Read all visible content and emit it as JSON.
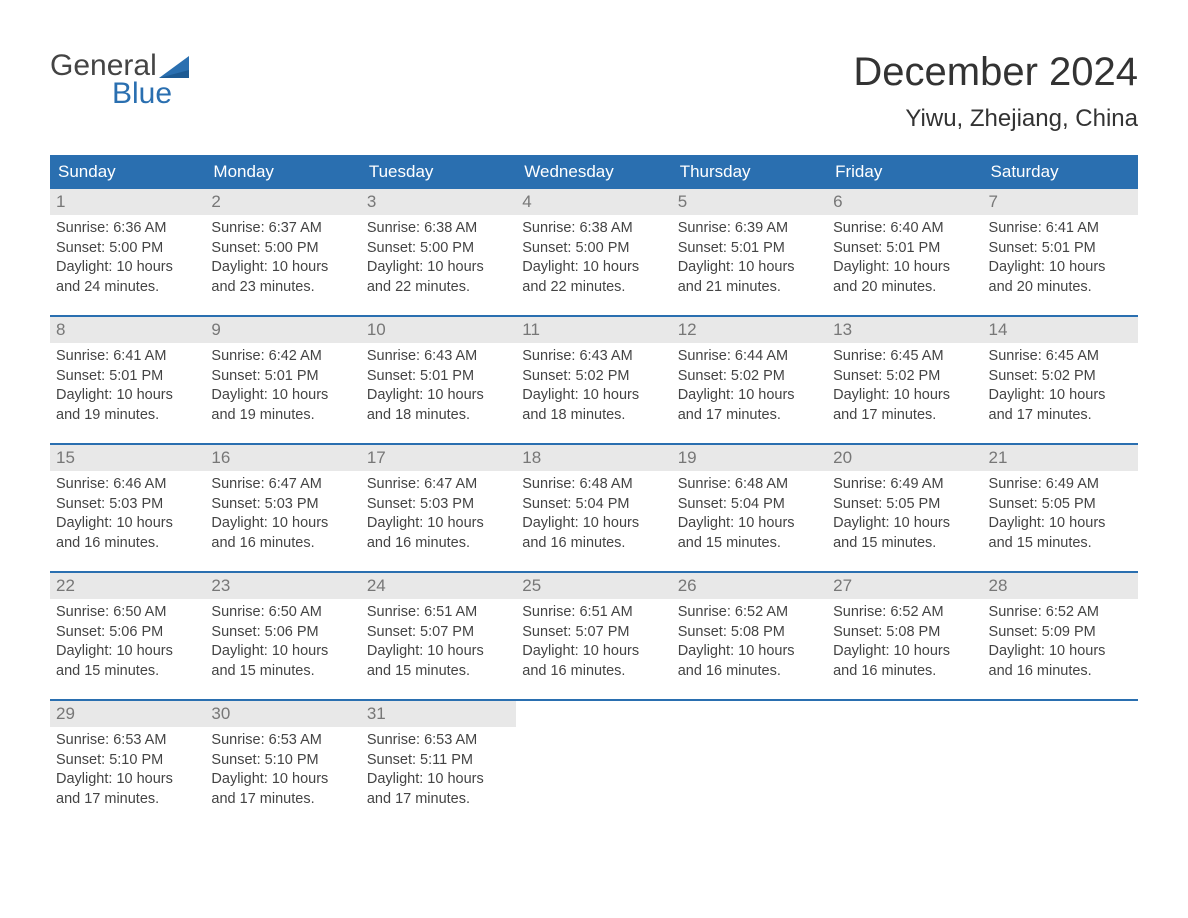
{
  "brand": {
    "line1": "General",
    "line2": "Blue"
  },
  "title": "December 2024",
  "location": "Yiwu, Zhejiang, China",
  "colors": {
    "header_bg": "#2a6fb0",
    "header_text": "#ffffff",
    "daynum_bg": "#e8e8e8",
    "daynum_text": "#777777",
    "body_text": "#444444",
    "rule": "#2a6fb0"
  },
  "weekdays": [
    "Sunday",
    "Monday",
    "Tuesday",
    "Wednesday",
    "Thursday",
    "Friday",
    "Saturday"
  ],
  "weeks": [
    [
      {
        "n": "1",
        "sunrise": "6:36 AM",
        "sunset": "5:00 PM",
        "dl": "10 hours and 24 minutes."
      },
      {
        "n": "2",
        "sunrise": "6:37 AM",
        "sunset": "5:00 PM",
        "dl": "10 hours and 23 minutes."
      },
      {
        "n": "3",
        "sunrise": "6:38 AM",
        "sunset": "5:00 PM",
        "dl": "10 hours and 22 minutes."
      },
      {
        "n": "4",
        "sunrise": "6:38 AM",
        "sunset": "5:00 PM",
        "dl": "10 hours and 22 minutes."
      },
      {
        "n": "5",
        "sunrise": "6:39 AM",
        "sunset": "5:01 PM",
        "dl": "10 hours and 21 minutes."
      },
      {
        "n": "6",
        "sunrise": "6:40 AM",
        "sunset": "5:01 PM",
        "dl": "10 hours and 20 minutes."
      },
      {
        "n": "7",
        "sunrise": "6:41 AM",
        "sunset": "5:01 PM",
        "dl": "10 hours and 20 minutes."
      }
    ],
    [
      {
        "n": "8",
        "sunrise": "6:41 AM",
        "sunset": "5:01 PM",
        "dl": "10 hours and 19 minutes."
      },
      {
        "n": "9",
        "sunrise": "6:42 AM",
        "sunset": "5:01 PM",
        "dl": "10 hours and 19 minutes."
      },
      {
        "n": "10",
        "sunrise": "6:43 AM",
        "sunset": "5:01 PM",
        "dl": "10 hours and 18 minutes."
      },
      {
        "n": "11",
        "sunrise": "6:43 AM",
        "sunset": "5:02 PM",
        "dl": "10 hours and 18 minutes."
      },
      {
        "n": "12",
        "sunrise": "6:44 AM",
        "sunset": "5:02 PM",
        "dl": "10 hours and 17 minutes."
      },
      {
        "n": "13",
        "sunrise": "6:45 AM",
        "sunset": "5:02 PM",
        "dl": "10 hours and 17 minutes."
      },
      {
        "n": "14",
        "sunrise": "6:45 AM",
        "sunset": "5:02 PM",
        "dl": "10 hours and 17 minutes."
      }
    ],
    [
      {
        "n": "15",
        "sunrise": "6:46 AM",
        "sunset": "5:03 PM",
        "dl": "10 hours and 16 minutes."
      },
      {
        "n": "16",
        "sunrise": "6:47 AM",
        "sunset": "5:03 PM",
        "dl": "10 hours and 16 minutes."
      },
      {
        "n": "17",
        "sunrise": "6:47 AM",
        "sunset": "5:03 PM",
        "dl": "10 hours and 16 minutes."
      },
      {
        "n": "18",
        "sunrise": "6:48 AM",
        "sunset": "5:04 PM",
        "dl": "10 hours and 16 minutes."
      },
      {
        "n": "19",
        "sunrise": "6:48 AM",
        "sunset": "5:04 PM",
        "dl": "10 hours and 15 minutes."
      },
      {
        "n": "20",
        "sunrise": "6:49 AM",
        "sunset": "5:05 PM",
        "dl": "10 hours and 15 minutes."
      },
      {
        "n": "21",
        "sunrise": "6:49 AM",
        "sunset": "5:05 PM",
        "dl": "10 hours and 15 minutes."
      }
    ],
    [
      {
        "n": "22",
        "sunrise": "6:50 AM",
        "sunset": "5:06 PM",
        "dl": "10 hours and 15 minutes."
      },
      {
        "n": "23",
        "sunrise": "6:50 AM",
        "sunset": "5:06 PM",
        "dl": "10 hours and 15 minutes."
      },
      {
        "n": "24",
        "sunrise": "6:51 AM",
        "sunset": "5:07 PM",
        "dl": "10 hours and 15 minutes."
      },
      {
        "n": "25",
        "sunrise": "6:51 AM",
        "sunset": "5:07 PM",
        "dl": "10 hours and 16 minutes."
      },
      {
        "n": "26",
        "sunrise": "6:52 AM",
        "sunset": "5:08 PM",
        "dl": "10 hours and 16 minutes."
      },
      {
        "n": "27",
        "sunrise": "6:52 AM",
        "sunset": "5:08 PM",
        "dl": "10 hours and 16 minutes."
      },
      {
        "n": "28",
        "sunrise": "6:52 AM",
        "sunset": "5:09 PM",
        "dl": "10 hours and 16 minutes."
      }
    ],
    [
      {
        "n": "29",
        "sunrise": "6:53 AM",
        "sunset": "5:10 PM",
        "dl": "10 hours and 17 minutes."
      },
      {
        "n": "30",
        "sunrise": "6:53 AM",
        "sunset": "5:10 PM",
        "dl": "10 hours and 17 minutes."
      },
      {
        "n": "31",
        "sunrise": "6:53 AM",
        "sunset": "5:11 PM",
        "dl": "10 hours and 17 minutes."
      },
      null,
      null,
      null,
      null
    ]
  ],
  "labels": {
    "sunrise": "Sunrise: ",
    "sunset": "Sunset: ",
    "daylight": "Daylight: "
  }
}
